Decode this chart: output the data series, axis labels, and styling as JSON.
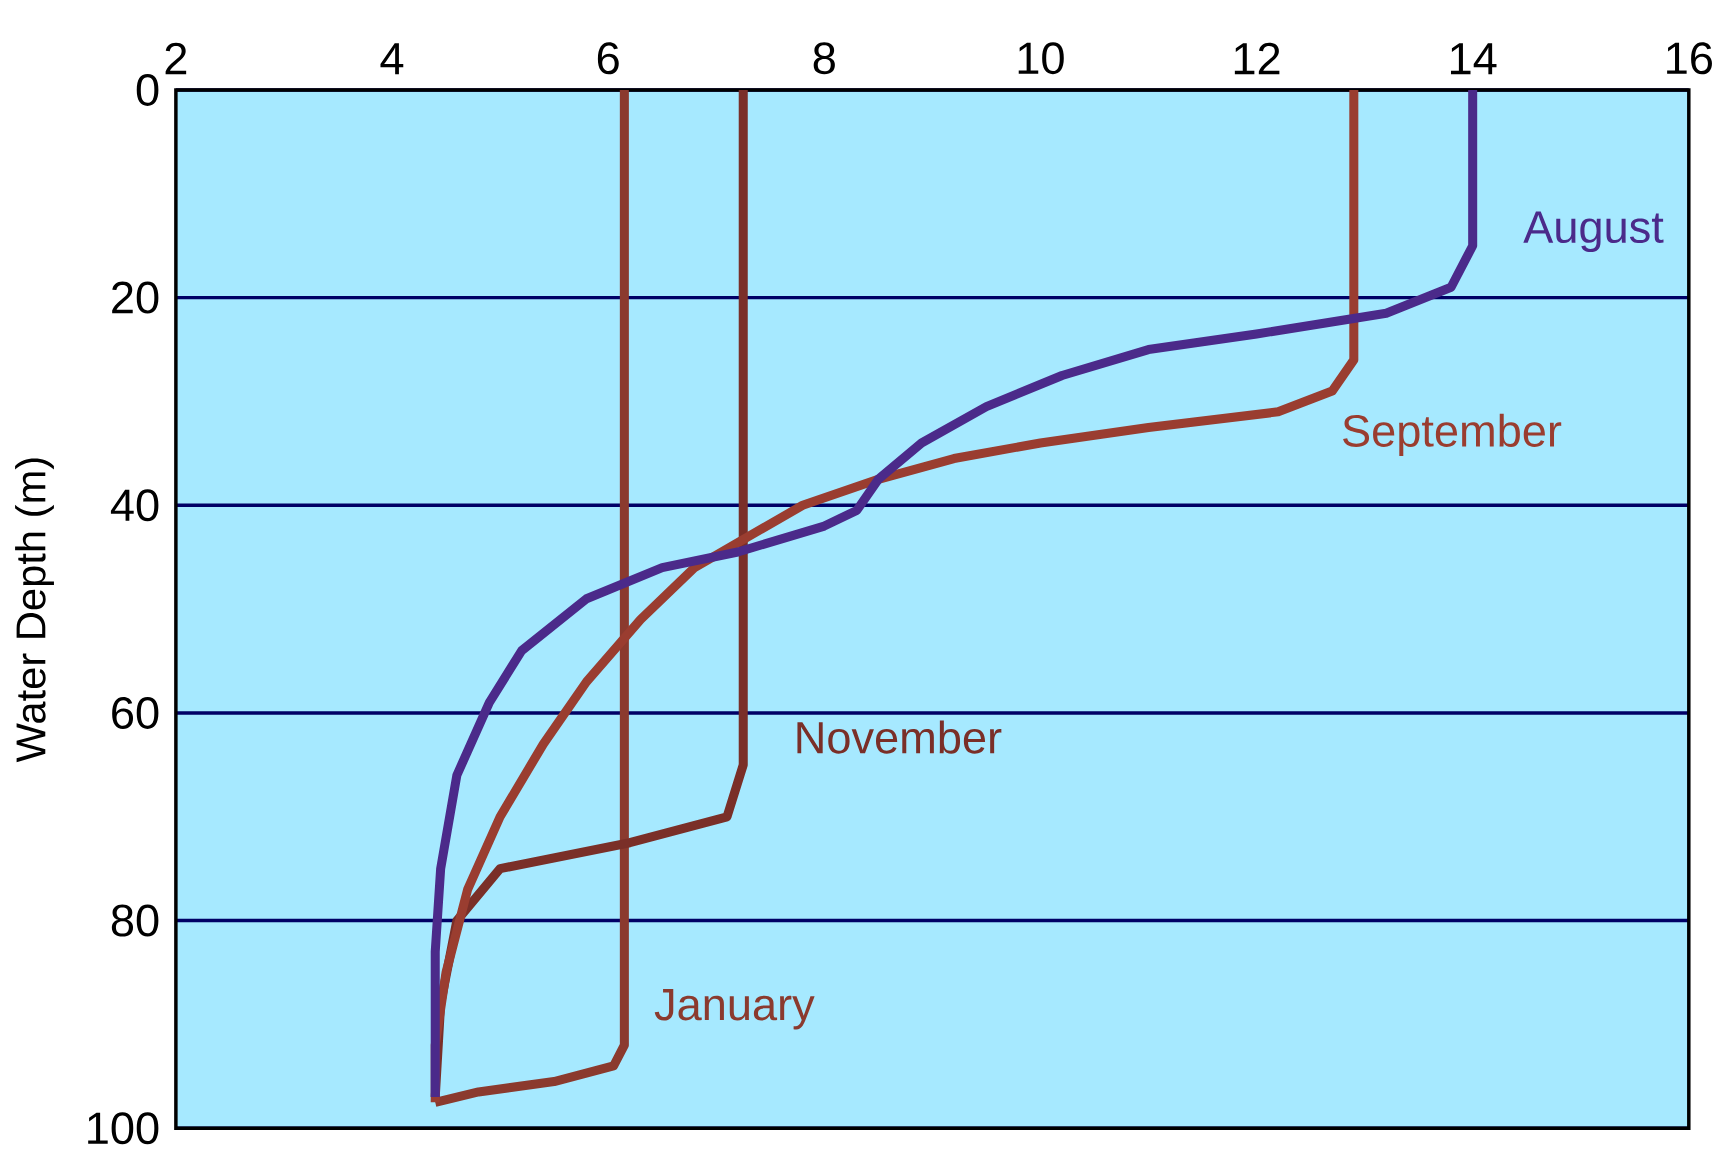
{
  "chart_data": {
    "type": "line",
    "ylabel": "Water Depth (m)",
    "xlim": [
      2,
      16
    ],
    "xticks": [
      2,
      4,
      6,
      8,
      10,
      12,
      14,
      16
    ],
    "ylim": [
      100,
      0
    ],
    "yticks": [
      0,
      20,
      40,
      60,
      80,
      100
    ],
    "grid": "y",
    "series": [
      {
        "name": "January",
        "color": "#8b3a2e",
        "x": [
          6.15,
          6.15,
          6.05,
          5.5,
          4.8,
          4.4
        ],
        "values": [
          0,
          92,
          94,
          95.5,
          96.5,
          97.5
        ]
      },
      {
        "name": "November",
        "color": "#7a2f28",
        "x": [
          7.25,
          7.25,
          7.1,
          6.2,
          5.0,
          4.6,
          4.45,
          4.4
        ],
        "values": [
          0,
          65,
          70,
          72.5,
          75,
          80,
          88,
          97
        ]
      },
      {
        "name": "September",
        "color": "#9a3d30",
        "x": [
          12.9,
          12.9,
          12.7,
          12.2,
          11,
          10,
          9.2,
          8.5,
          7.8,
          7.3,
          6.8,
          6.3,
          5.8,
          5.4,
          5.0,
          4.7,
          4.5,
          4.4,
          4.4
        ],
        "values": [
          0,
          26,
          29,
          31,
          32.5,
          34,
          35.5,
          37.5,
          40,
          43,
          46,
          51,
          57,
          63,
          70,
          77,
          85,
          92,
          97.5
        ]
      },
      {
        "name": "August",
        "color": "#4b2a8a",
        "x": [
          14,
          14,
          13.8,
          13.2,
          12,
          11,
          10.2,
          9.5,
          8.9,
          8.5,
          8.3,
          8.0,
          7.2,
          6.5,
          5.8,
          5.2,
          4.9,
          4.6,
          4.45,
          4.4,
          4.4
        ],
        "values": [
          0,
          15,
          19,
          21.5,
          23.5,
          25,
          27.5,
          30.5,
          34,
          37.5,
          40.5,
          42,
          44.5,
          46,
          49,
          54,
          59,
          66,
          75,
          83,
          97
        ]
      }
    ]
  }
}
